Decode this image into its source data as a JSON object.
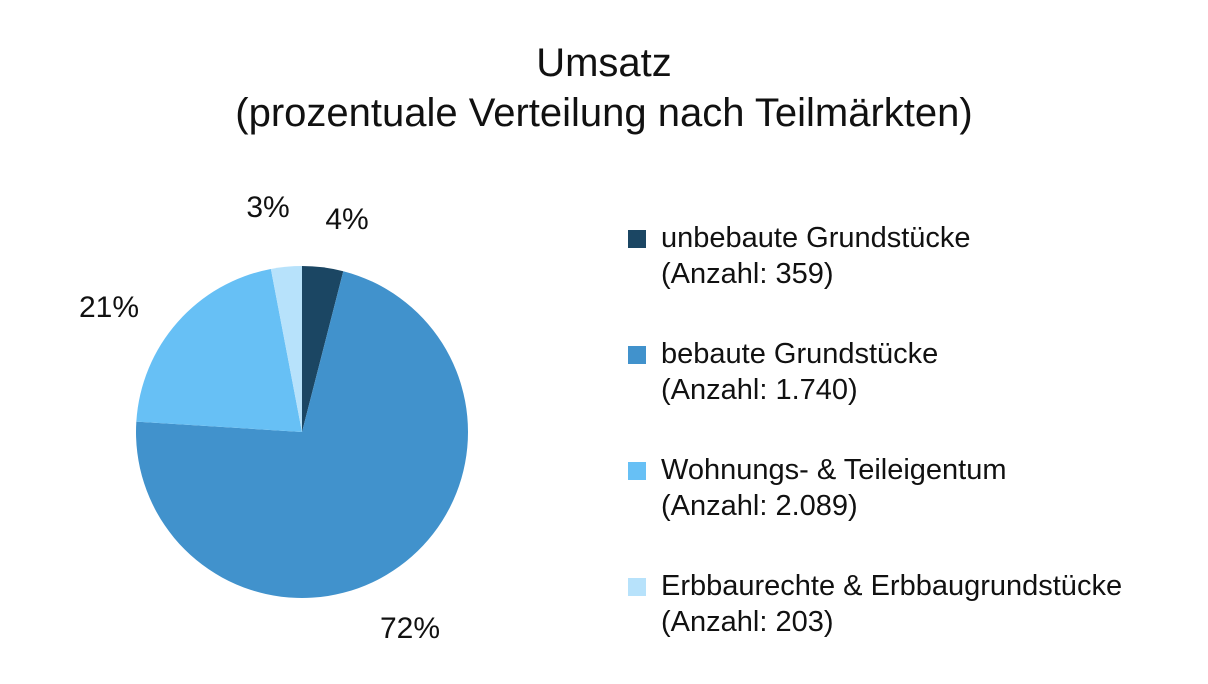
{
  "chart_data": {
    "type": "pie",
    "title": "Umsatz",
    "subtitle": "(prozentuale Verteilung nach Teilmärkten)",
    "unit": "%",
    "slices": [
      {
        "name": "unbebaute Grundstücke",
        "count_label": "(Anzahl: 359)",
        "value": 4,
        "label": "4%",
        "color": "#1b4663"
      },
      {
        "name": "bebaute Grundstücke",
        "count_label": "(Anzahl: 1.740)",
        "value": 72,
        "label": "72%",
        "color": "#4192cc"
      },
      {
        "name": "Wohnungs- & Teileigentum",
        "count_label": "(Anzahl: 2.089)",
        "value": 21,
        "label": "21%",
        "color": "#67c0f5"
      },
      {
        "name": "Erbbaurechte & Erbbaugrundstücke",
        "count_label": "(Anzahl: 203)",
        "value": 3,
        "label": "3%",
        "color": "#b7e2fb"
      }
    ],
    "start_angle": "12 o'clock",
    "direction": "clockwise",
    "legend_position": "right"
  }
}
